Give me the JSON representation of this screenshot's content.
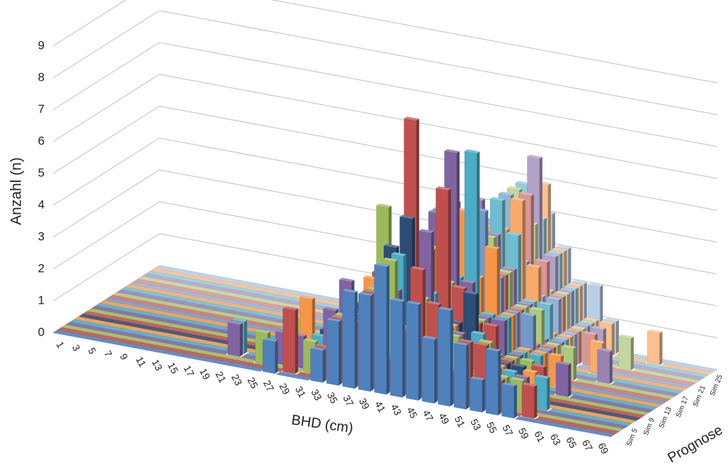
{
  "chart_data": {
    "type": "bar3d",
    "x_label": "BHD (cm)",
    "y_label": "Anzahl (n)",
    "z_label": "Prognose",
    "categories": [
      "1",
      "3",
      "5",
      "7",
      "9",
      "11",
      "13",
      "15",
      "17",
      "19",
      "21",
      "23",
      "25",
      "27",
      "29",
      "31",
      "33",
      "35",
      "37",
      "39",
      "41",
      "43",
      "45",
      "47",
      "49",
      "51",
      "53",
      "55",
      "57",
      "59",
      "61",
      "63",
      "65",
      "67",
      "69"
    ],
    "ylim": [
      0,
      9
    ],
    "yticks": [
      0,
      1,
      2,
      3,
      4,
      5,
      6,
      7,
      8,
      9
    ],
    "grid": true,
    "series": [
      {
        "name": null,
        "color": "#4f81bd",
        "values": [
          0,
          0,
          0,
          0,
          0,
          0,
          0,
          0,
          0,
          0,
          0,
          0,
          0,
          1,
          0,
          0,
          1,
          2,
          3,
          3,
          4,
          3,
          3,
          2,
          3,
          2,
          1,
          2,
          1,
          0,
          0,
          0,
          0,
          0,
          0
        ]
      },
      {
        "name": null,
        "color": "#c0504d",
        "values": [
          0,
          0,
          0,
          0,
          0,
          0,
          0,
          0,
          0,
          0,
          0,
          0,
          0,
          0,
          2,
          0,
          1,
          2,
          2,
          3,
          1,
          2,
          4,
          3,
          1,
          2,
          2,
          1,
          0,
          1,
          0,
          0,
          0,
          0,
          0
        ]
      },
      {
        "name": null,
        "color": "#9bbb59",
        "values": [
          0,
          0,
          0,
          0,
          0,
          0,
          0,
          0,
          0,
          0,
          0,
          0,
          1,
          0,
          0,
          1,
          0,
          2,
          1,
          3,
          4,
          2,
          3,
          1,
          2,
          1,
          2,
          1,
          1,
          0,
          0,
          0,
          0,
          0,
          0
        ]
      },
      {
        "name": null,
        "color": "#8064a2",
        "values": [
          0,
          0,
          0,
          0,
          0,
          0,
          0,
          0,
          0,
          0,
          1,
          0,
          0,
          1,
          1,
          0,
          2,
          3,
          2,
          2,
          3,
          1,
          5,
          2,
          2,
          1,
          1,
          0,
          1,
          0,
          0,
          0,
          0,
          0,
          0
        ]
      },
      {
        "name": "Sim 5",
        "color": "#4bacc6",
        "values": [
          0,
          0,
          0,
          0,
          0,
          0,
          0,
          0,
          0,
          0,
          1,
          0,
          0,
          1,
          0,
          1,
          1,
          2,
          2,
          3,
          4,
          2,
          3,
          2,
          1,
          2,
          1,
          1,
          0,
          1,
          0,
          0,
          0,
          0,
          0
        ]
      },
      {
        "name": null,
        "color": "#f79646",
        "values": [
          0,
          0,
          0,
          0,
          0,
          0,
          0,
          0,
          0,
          0,
          0,
          0,
          0,
          0,
          2,
          0,
          1,
          1,
          3,
          2,
          1,
          3,
          2,
          2,
          1,
          1,
          1,
          0,
          1,
          0,
          0,
          0,
          0,
          0,
          0
        ]
      },
      {
        "name": null,
        "color": "#2c4d75",
        "values": [
          0,
          0,
          0,
          0,
          0,
          0,
          0,
          0,
          0,
          0,
          0,
          0,
          0,
          0,
          0,
          1,
          1,
          2,
          2,
          4,
          5,
          3,
          2,
          2,
          3,
          1,
          1,
          1,
          0,
          0,
          0,
          0,
          0,
          0,
          0
        ]
      },
      {
        "name": null,
        "color": "#c0504d",
        "values": [
          0,
          0,
          0,
          0,
          0,
          0,
          0,
          0,
          0,
          0,
          0,
          0,
          0,
          0,
          0,
          0,
          1,
          1,
          3,
          2,
          8,
          4,
          6,
          3,
          2,
          2,
          1,
          0,
          1,
          0,
          0,
          0,
          0,
          0,
          0
        ]
      },
      {
        "name": "Sim 9",
        "color": "#9bbb59",
        "values": [
          0,
          0,
          0,
          0,
          0,
          0,
          0,
          0,
          0,
          0,
          0,
          0,
          0,
          1,
          0,
          0,
          1,
          2,
          5,
          3,
          2,
          4,
          3,
          2,
          2,
          1,
          1,
          1,
          0,
          0,
          0,
          0,
          0,
          0,
          0
        ]
      },
      {
        "name": null,
        "color": "#8064a2",
        "values": [
          0,
          0,
          0,
          0,
          0,
          0,
          0,
          0,
          0,
          0,
          0,
          0,
          0,
          0,
          0,
          1,
          0,
          2,
          2,
          3,
          4,
          5,
          7,
          3,
          2,
          2,
          1,
          0,
          0,
          1,
          0,
          0,
          0,
          0,
          0
        ]
      },
      {
        "name": null,
        "color": "#4bacc6",
        "values": [
          0,
          0,
          0,
          0,
          0,
          0,
          0,
          0,
          0,
          0,
          0,
          0,
          0,
          0,
          0,
          0,
          1,
          1,
          2,
          3,
          4,
          5,
          3,
          7,
          2,
          2,
          1,
          1,
          0,
          0,
          0,
          0,
          0,
          0,
          0
        ]
      },
      {
        "name": null,
        "color": "#f79646",
        "values": [
          0,
          0,
          0,
          0,
          0,
          0,
          0,
          0,
          0,
          0,
          0,
          0,
          0,
          0,
          0,
          0,
          0,
          1,
          2,
          2,
          3,
          4,
          5,
          3,
          4,
          2,
          1,
          1,
          1,
          0,
          0,
          0,
          0,
          0,
          0
        ]
      },
      {
        "name": "Sim 13",
        "color": "#729aca",
        "values": [
          0,
          0,
          0,
          0,
          0,
          0,
          0,
          0,
          0,
          0,
          0,
          0,
          0,
          0,
          0,
          0,
          1,
          1,
          1,
          3,
          2,
          4,
          4,
          5,
          3,
          2,
          2,
          1,
          0,
          0,
          0,
          0,
          0,
          0,
          0
        ]
      },
      {
        "name": null,
        "color": "#cd7371",
        "values": [
          0,
          0,
          0,
          0,
          0,
          0,
          0,
          0,
          0,
          0,
          0,
          0,
          0,
          0,
          0,
          0,
          0,
          1,
          2,
          2,
          3,
          5,
          4,
          3,
          3,
          2,
          1,
          1,
          0,
          0,
          0,
          0,
          0,
          0,
          0
        ]
      },
      {
        "name": null,
        "color": "#afc97a",
        "values": [
          0,
          0,
          0,
          0,
          0,
          0,
          0,
          0,
          0,
          0,
          0,
          0,
          0,
          0,
          0,
          0,
          0,
          1,
          1,
          2,
          3,
          3,
          4,
          4,
          3,
          2,
          2,
          1,
          1,
          0,
          0,
          0,
          0,
          0,
          0
        ]
      },
      {
        "name": null,
        "color": "#9983b5",
        "values": [
          0,
          0,
          0,
          0,
          0,
          0,
          0,
          0,
          0,
          0,
          0,
          0,
          0,
          0,
          0,
          0,
          0,
          0,
          1,
          2,
          2,
          3,
          5,
          4,
          3,
          2,
          1,
          1,
          0,
          0,
          1,
          0,
          0,
          0,
          0
        ]
      },
      {
        "name": "Sim 17",
        "color": "#6fbdd1",
        "values": [
          0,
          0,
          0,
          0,
          0,
          0,
          0,
          0,
          0,
          0,
          0,
          0,
          0,
          0,
          0,
          0,
          0,
          0,
          1,
          1,
          3,
          4,
          3,
          5,
          4,
          2,
          2,
          1,
          0,
          0,
          0,
          0,
          0,
          0,
          0
        ]
      },
      {
        "name": null,
        "color": "#f9ab6b",
        "values": [
          0,
          0,
          0,
          0,
          0,
          0,
          0,
          0,
          0,
          0,
          0,
          0,
          0,
          0,
          0,
          0,
          0,
          1,
          1,
          2,
          2,
          3,
          4,
          4,
          5,
          3,
          1,
          1,
          0,
          1,
          0,
          0,
          0,
          0,
          0
        ]
      },
      {
        "name": null,
        "color": "#95b3d7",
        "values": [
          0,
          0,
          0,
          0,
          0,
          0,
          0,
          0,
          0,
          0,
          0,
          0,
          0,
          0,
          0,
          0,
          0,
          0,
          1,
          2,
          3,
          3,
          4,
          5,
          3,
          2,
          2,
          1,
          0,
          0,
          0,
          0,
          0,
          0,
          0
        ]
      },
      {
        "name": null,
        "color": "#d99694",
        "values": [
          0,
          0,
          0,
          0,
          0,
          0,
          0,
          0,
          0,
          0,
          0,
          0,
          0,
          0,
          0,
          0,
          0,
          0,
          1,
          1,
          2,
          4,
          4,
          3,
          5,
          3,
          2,
          1,
          1,
          0,
          0,
          0,
          0,
          0,
          0
        ]
      },
      {
        "name": "Sim 21",
        "color": "#c3d69b",
        "values": [
          0,
          0,
          0,
          0,
          0,
          0,
          0,
          0,
          0,
          0,
          0,
          0,
          0,
          0,
          0,
          0,
          0,
          0,
          0,
          1,
          2,
          3,
          4,
          5,
          4,
          2,
          2,
          1,
          0,
          0,
          1,
          0,
          0,
          0,
          0
        ]
      },
      {
        "name": null,
        "color": "#b3a2c7",
        "values": [
          0,
          0,
          0,
          0,
          0,
          0,
          0,
          0,
          0,
          0,
          0,
          0,
          0,
          0,
          0,
          0,
          0,
          0,
          1,
          1,
          2,
          3,
          3,
          4,
          6,
          3,
          2,
          1,
          1,
          0,
          0,
          0,
          0,
          0,
          0
        ]
      },
      {
        "name": null,
        "color": "#93cddd",
        "values": [
          0,
          0,
          0,
          0,
          0,
          0,
          0,
          0,
          0,
          0,
          0,
          0,
          0,
          0,
          0,
          0,
          0,
          0,
          0,
          1,
          2,
          2,
          4,
          5,
          4,
          3,
          2,
          1,
          0,
          0,
          0,
          0,
          0,
          0,
          0
        ]
      },
      {
        "name": null,
        "color": "#fac090",
        "values": [
          0,
          0,
          0,
          0,
          0,
          0,
          0,
          0,
          0,
          0,
          0,
          0,
          0,
          0,
          0,
          0,
          0,
          0,
          0,
          1,
          1,
          3,
          3,
          4,
          5,
          3,
          2,
          1,
          1,
          0,
          0,
          1,
          0,
          0,
          0
        ]
      },
      {
        "name": "Sim 25",
        "color": "#b9cde5",
        "values": [
          0,
          0,
          0,
          0,
          0,
          0,
          0,
          0,
          0,
          0,
          0,
          0,
          0,
          0,
          0,
          0,
          0,
          0,
          0,
          1,
          2,
          2,
          3,
          4,
          4,
          3,
          2,
          2,
          1,
          0,
          0,
          0,
          0,
          0,
          0
        ]
      }
    ]
  }
}
